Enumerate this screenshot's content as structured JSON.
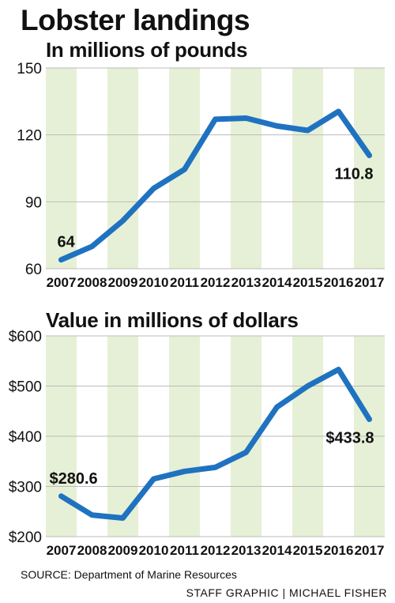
{
  "title": "Lobster landings",
  "source": "SOURCE: Department of Marine Resources",
  "credit": "STAFF GRAPHIC | MICHAEL FISHER",
  "colors": {
    "line": "#1f72c0",
    "band": "#e6f0d6",
    "grid": "#bbbbbb"
  },
  "chart_data": [
    {
      "type": "line",
      "title": "In millions of pounds",
      "x": [
        "2007",
        "2008",
        "2009",
        "2010",
        "2011",
        "2012",
        "2013",
        "2014",
        "2015",
        "2016",
        "2017"
      ],
      "series": [
        {
          "values": [
            64,
            70,
            81.5,
            96,
            104.5,
            127,
            127.5,
            124,
            122,
            130.5,
            110.8
          ]
        }
      ],
      "ylim": [
        60,
        150
      ],
      "yticks": [
        60,
        90,
        120,
        150
      ],
      "ytick_labels": [
        "60",
        "90",
        "120",
        "150"
      ],
      "annotations": [
        {
          "x": "2007",
          "text": "64"
        },
        {
          "x": "2017",
          "text": "110.8"
        }
      ]
    },
    {
      "type": "line",
      "title": "Value in millions of dollars",
      "x": [
        "2007",
        "2008",
        "2009",
        "2010",
        "2011",
        "2012",
        "2013",
        "2014",
        "2015",
        "2016",
        "2017"
      ],
      "series": [
        {
          "values": [
            280.6,
            243,
            237,
            315,
            330,
            338,
            368,
            458,
            500,
            533,
            433.8
          ]
        }
      ],
      "ylim": [
        200,
        600
      ],
      "yticks": [
        200,
        300,
        400,
        500,
        600
      ],
      "ytick_labels": [
        "$200",
        "$300",
        "$400",
        "$500",
        "$600"
      ],
      "annotations": [
        {
          "x": "2007",
          "text": "$280.6"
        },
        {
          "x": "2017",
          "text": "$433.8"
        }
      ]
    }
  ]
}
